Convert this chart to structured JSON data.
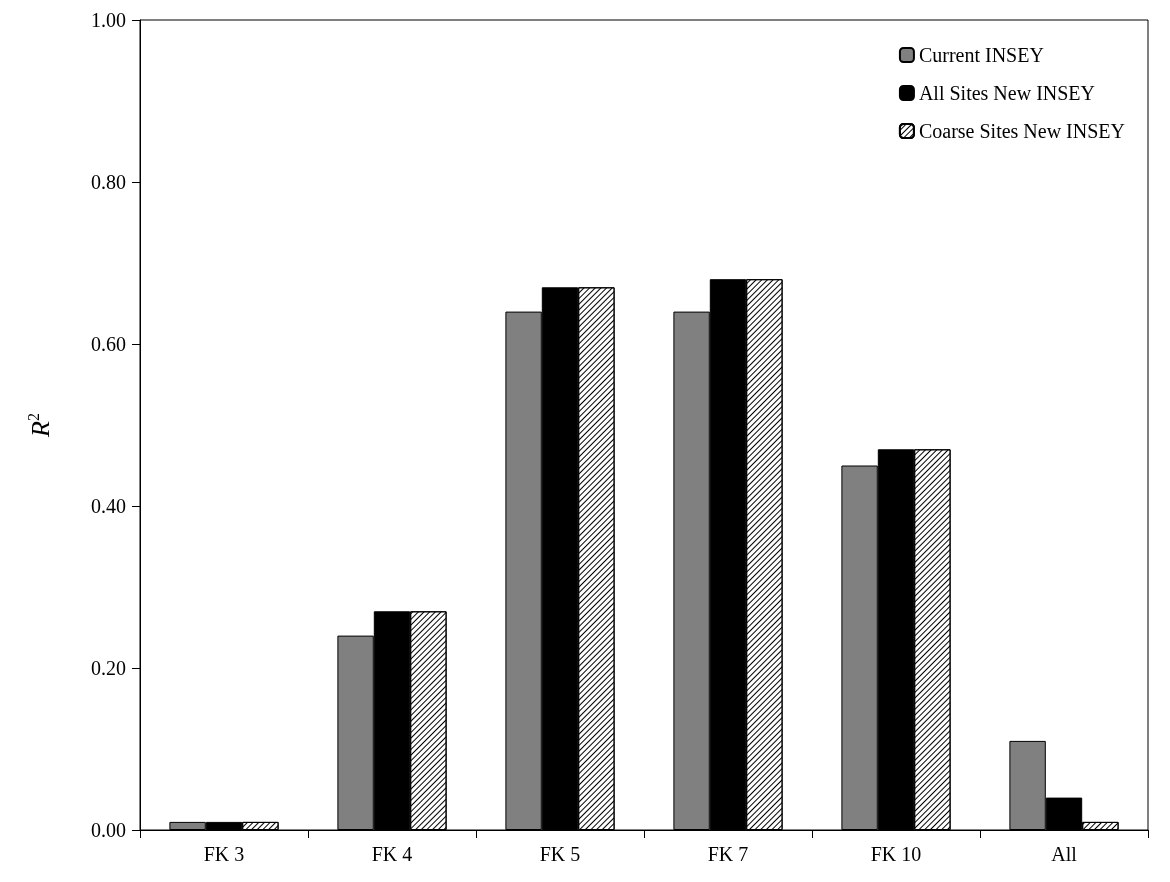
{
  "chart_data": {
    "type": "bar",
    "ylabel": "R$^{2}$",
    "categories": [
      "FK 3",
      "FK 4",
      "FK 5",
      "FK 7",
      "FK 10",
      "All"
    ],
    "series": [
      {
        "name": "Current INSEY",
        "color": "#808080",
        "values": [
          0.01,
          0.24,
          0.64,
          0.64,
          0.45,
          0.11
        ]
      },
      {
        "name": "All Sites New INSEY",
        "color": "#000000",
        "values": [
          0.01,
          0.27,
          0.67,
          0.68,
          0.47,
          0.04
        ]
      },
      {
        "name": "Coarse Sites New INSEY",
        "color": "#ffffff",
        "values": [
          0.01,
          0.27,
          0.67,
          0.68,
          0.47,
          0.01
        ]
      }
    ],
    "ylim": [
      0,
      1
    ],
    "yticks": [
      {
        "value": 0,
        "label": "0.00"
      },
      {
        "value": 0.2,
        "label": "0.20"
      },
      {
        "value": 0.4,
        "label": "0.40"
      },
      {
        "value": 0.6,
        "label": "0.60"
      },
      {
        "value": 0.8,
        "label": "0.80"
      },
      {
        "value": 1,
        "label": "1.00"
      }
    ],
    "grid": false,
    "legend": "top right"
  }
}
